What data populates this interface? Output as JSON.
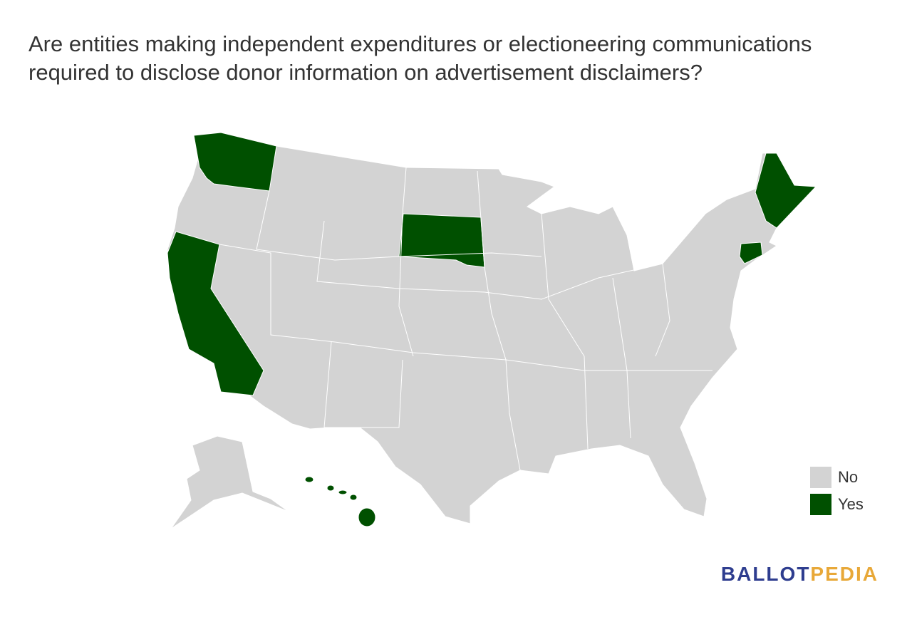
{
  "title": "Are entities making independent expenditures or electioneering communications required to disclose donor information on advertisement disclaimers?",
  "legend": [
    {
      "label": "No",
      "color": "#d3d3d3"
    },
    {
      "label": "Yes",
      "color": "#005000"
    }
  ],
  "brand": {
    "part1": "BALLOT",
    "part2": "PEDIA",
    "color1": "#2e3d8f",
    "color2": "#e8a838"
  }
}
